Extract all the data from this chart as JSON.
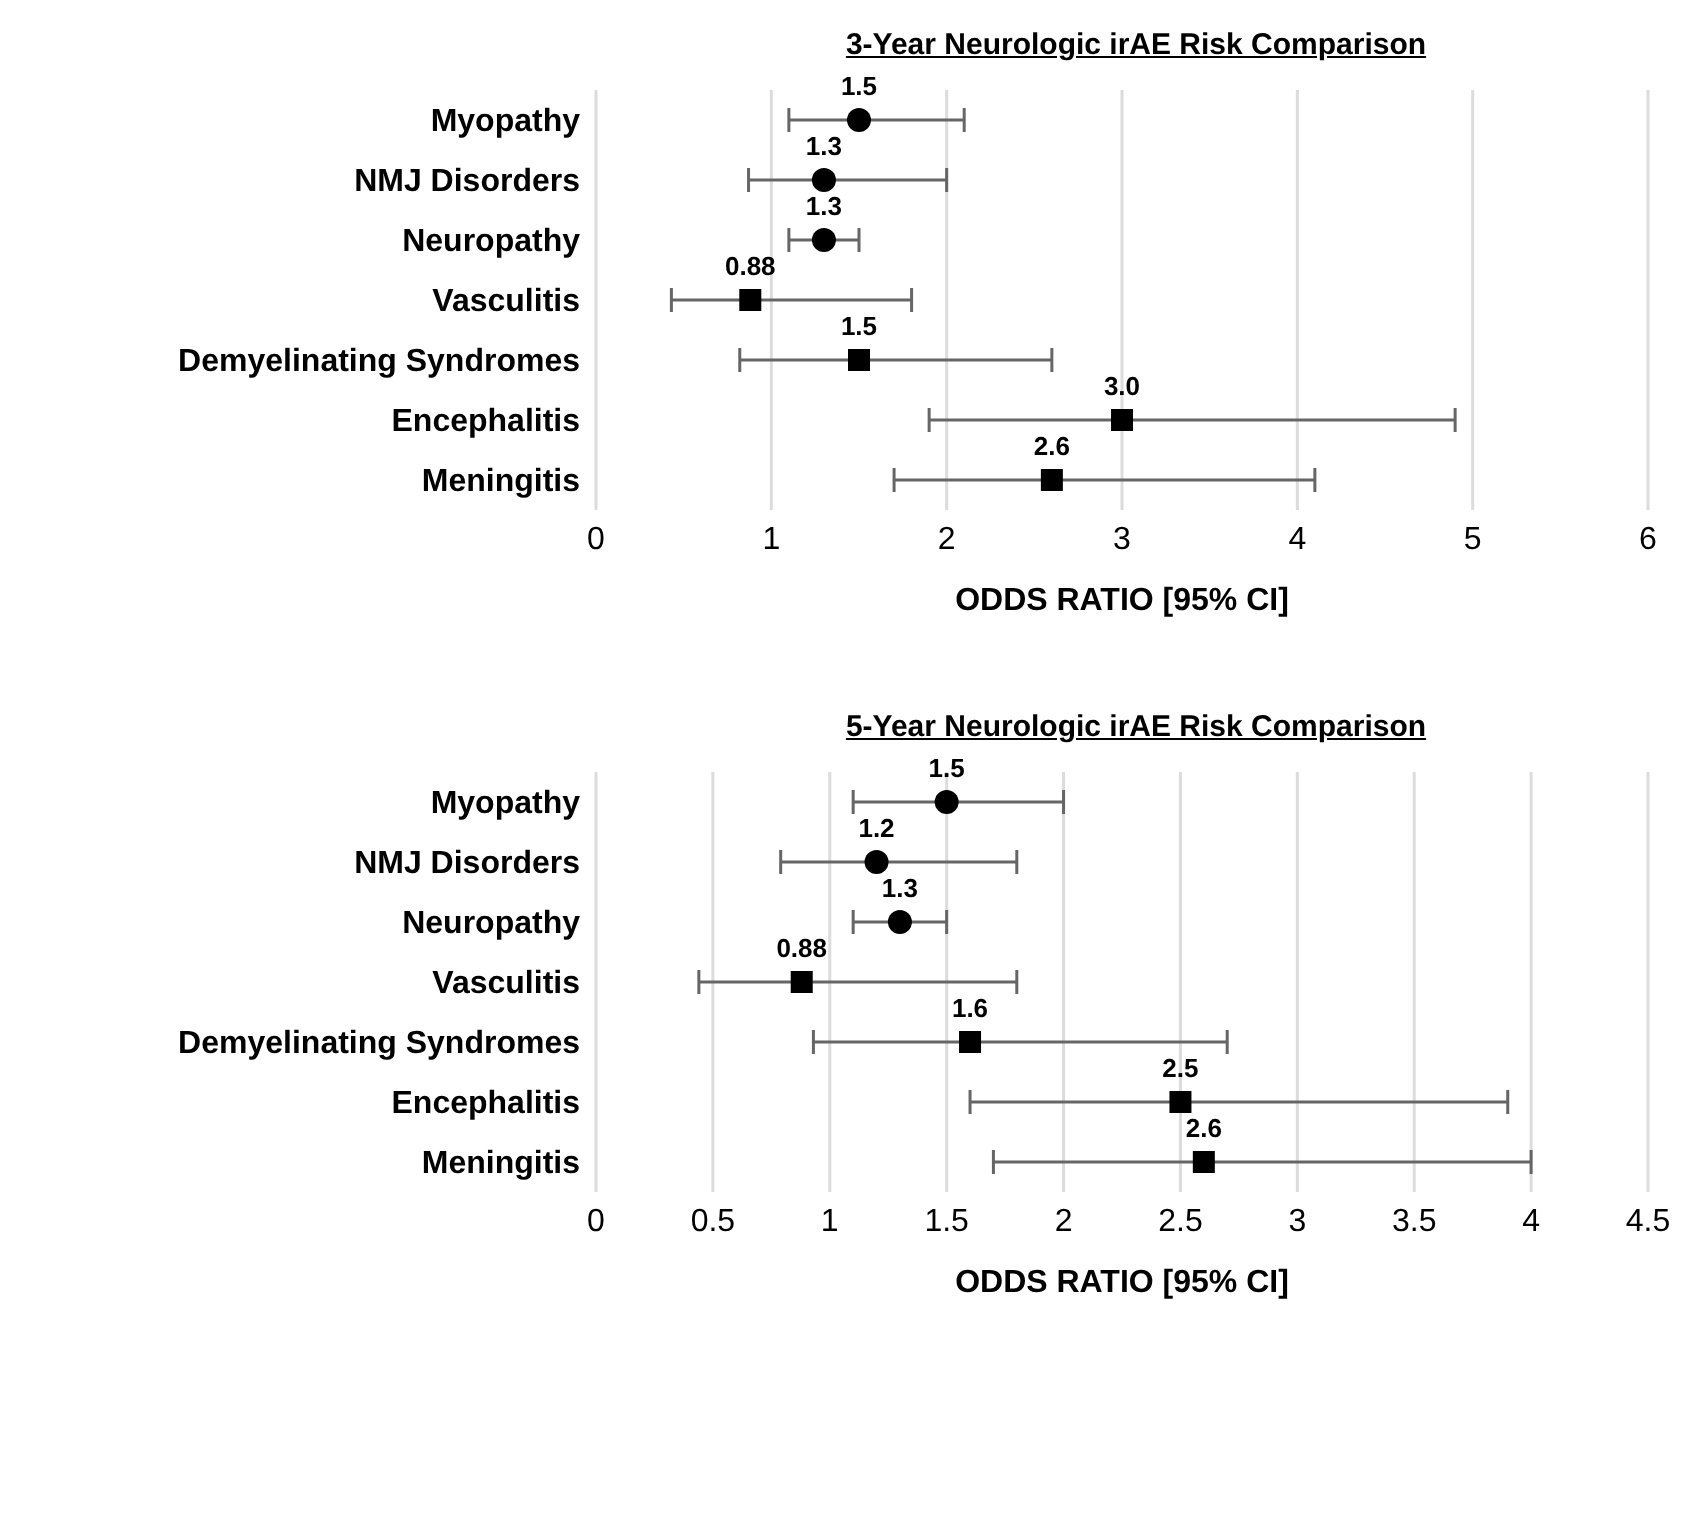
{
  "chart_data": [
    {
      "type": "scatter",
      "orientation": "horizontal",
      "title": "3-Year Neurologic irAE Risk Comparison",
      "xlabel": "ODDS RATIO [95% CI]",
      "categories": [
        "Myopathy",
        "NMJ Disorders",
        "Neuropathy",
        "Vasculitis",
        "Demyelinating Syndromes",
        "Encephalitis",
        "Meningitis"
      ],
      "xlim": [
        0,
        6
      ],
      "xticks": [
        0,
        1,
        2,
        3,
        4,
        5,
        6
      ],
      "grid": "x",
      "series": [
        {
          "color": "#000000",
          "marker": "circle",
          "values": [
            1.5,
            1.3,
            1.3,
            null,
            null,
            null,
            null
          ],
          "value_labels": [
            "1.5",
            "1.3",
            "1.3",
            null,
            null,
            null,
            null
          ],
          "errors": [
            [
              1.1,
              2.1
            ],
            [
              0.87,
              2.0
            ],
            [
              1.1,
              1.5
            ],
            null,
            null,
            null,
            null
          ]
        },
        {
          "color": "#000000",
          "marker": "square",
          "values": [
            null,
            null,
            null,
            0.88,
            1.5,
            3,
            2.6
          ],
          "value_labels": [
            null,
            null,
            null,
            "0.88",
            "1.5",
            "3.0",
            "2.6"
          ],
          "errors": [
            null,
            null,
            null,
            [
              0.43,
              1.8
            ],
            [
              0.82,
              2.6
            ],
            [
              1.9,
              4.9
            ],
            [
              1.7,
              4.1
            ]
          ]
        }
      ]
    },
    {
      "type": "scatter",
      "orientation": "horizontal",
      "title": "5-Year Neurologic irAE Risk Comparison",
      "xlabel": "ODDS RATIO [95% CI]",
      "categories": [
        "Myopathy",
        "NMJ Disorders",
        "Neuropathy",
        "Vasculitis",
        "Demyelinating Syndromes",
        "Encephalitis",
        "Meningitis"
      ],
      "xlim": [
        0,
        4.5
      ],
      "xticks": [
        0,
        0.5,
        1,
        1.5,
        2,
        2.5,
        3,
        3.5,
        4,
        4.5
      ],
      "grid": "x",
      "series": [
        {
          "color": "#000000",
          "marker": "circle",
          "values": [
            1.5,
            1.2,
            1.3,
            null,
            null,
            null,
            null
          ],
          "value_labels": [
            "1.5",
            "1.2",
            "1.3",
            null,
            null,
            null,
            null
          ],
          "errors": [
            [
              1.1,
              2.0
            ],
            [
              0.79,
              1.8
            ],
            [
              1.1,
              1.5
            ],
            null,
            null,
            null,
            null
          ]
        },
        {
          "color": "#000000",
          "marker": "square",
          "values": [
            null,
            null,
            null,
            0.88,
            1.6,
            2.5,
            2.6
          ],
          "value_labels": [
            null,
            null,
            null,
            "0.88",
            "1.6",
            "2.5",
            "2.6"
          ],
          "errors": [
            null,
            null,
            null,
            [
              0.44,
              1.8
            ],
            [
              0.93,
              2.7
            ],
            [
              1.6,
              3.9
            ],
            [
              1.7,
              4.0
            ]
          ]
        }
      ]
    }
  ]
}
